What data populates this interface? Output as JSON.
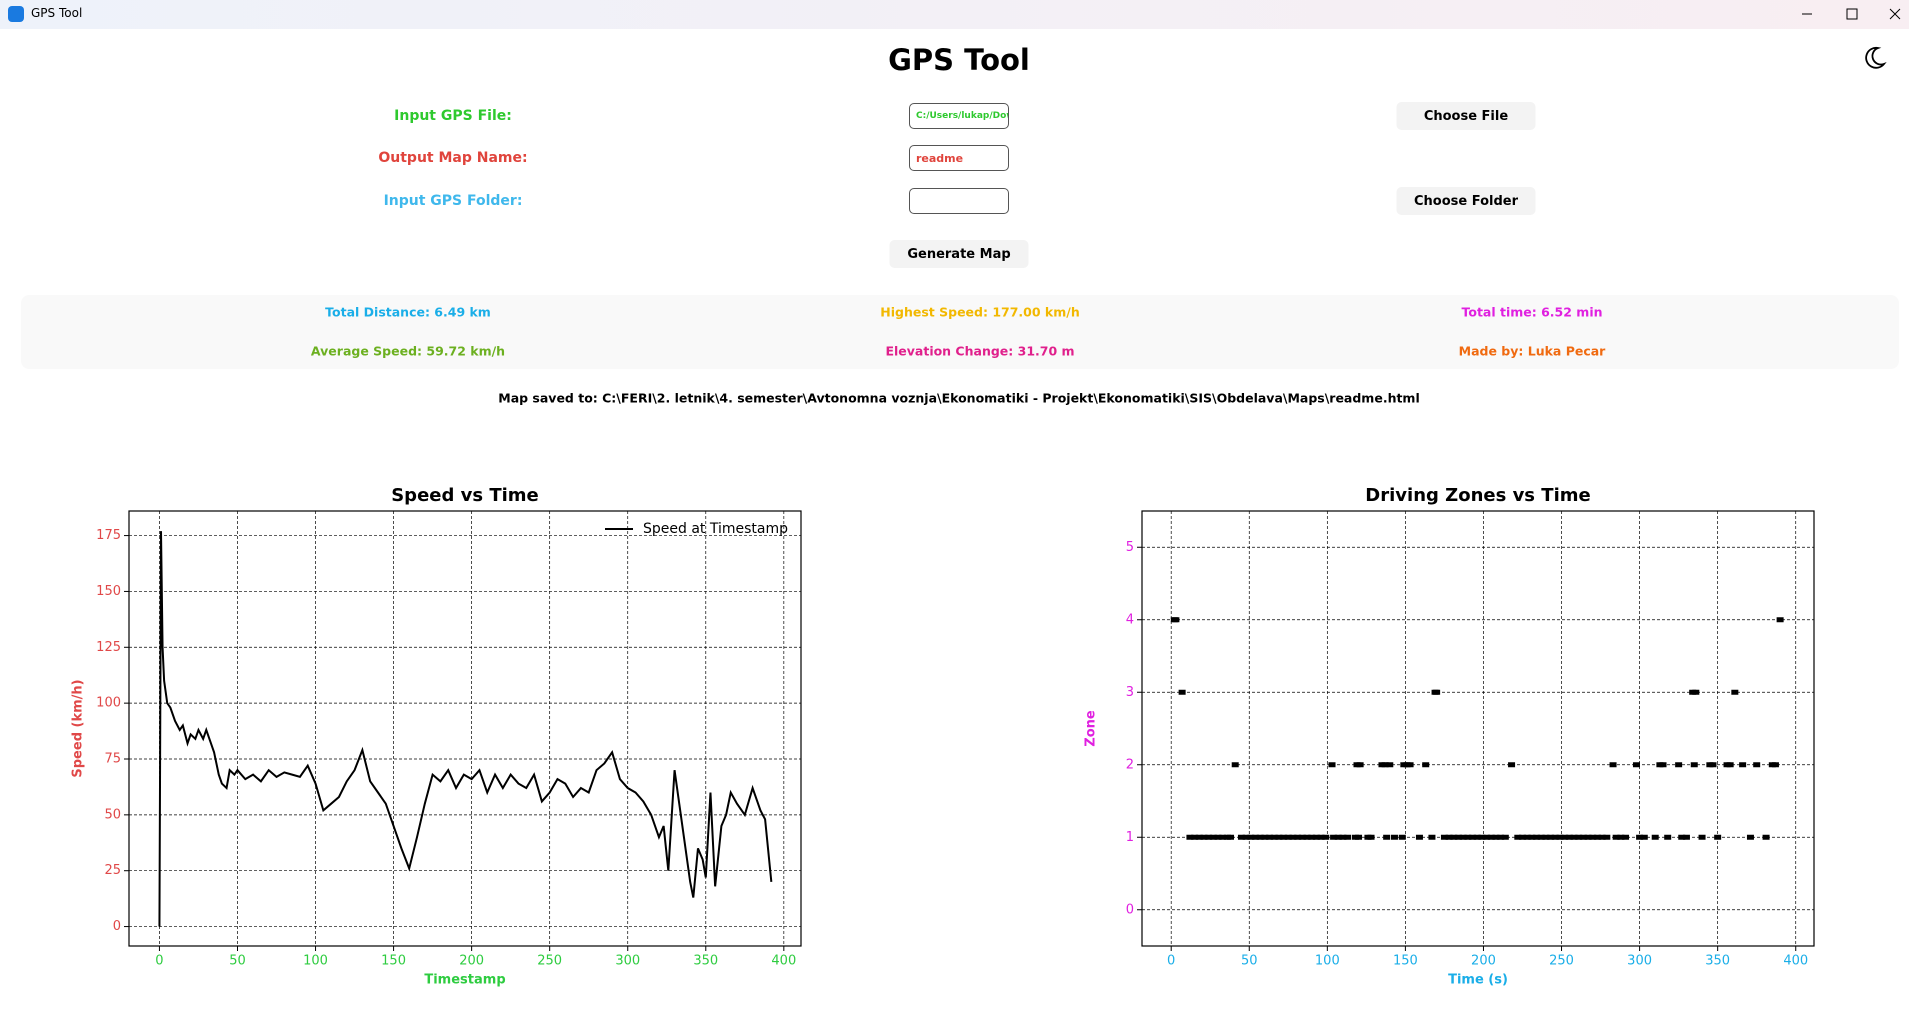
{
  "window": {
    "title": "GPS Tool"
  },
  "header": {
    "title": "GPS Tool"
  },
  "form": {
    "input_file_label": "Input GPS File:",
    "input_file_value": "C:/Users/lukap/Dow",
    "output_name_label": "Output Map Name:",
    "output_name_value": "readme",
    "input_folder_label": "Input GPS Folder:",
    "choose_file": "Choose File",
    "choose_folder": "Choose Folder",
    "generate": "Generate Map"
  },
  "stats": [
    "Total Distance: 6.49 km",
    "Highest Speed: 177.00 km/h",
    "Total time: 6.52 min",
    "Average Speed: 59.72 km/h",
    "Elevation Change: 31.70 m",
    "Made by: Luka Pecar"
  ],
  "status": "Map saved to: C:\\FERI\\2. letnik\\4. semester\\Avtonomna voznja\\Ekonomatiki - Projekt\\Ekonomatiki\\SIS\\Obdelava\\Maps\\readme.html",
  "chart_data": [
    {
      "type": "line",
      "title": "Speed vs Time",
      "xlabel": "Timestamp",
      "ylabel": "Speed (km/h)",
      "x": [
        0,
        1,
        2,
        3,
        5,
        7,
        10,
        13,
        15,
        18,
        20,
        23,
        25,
        28,
        30,
        33,
        35,
        38,
        40,
        43,
        45,
        48,
        50,
        55,
        60,
        65,
        70,
        75,
        80,
        85,
        90,
        95,
        100,
        105,
        110,
        115,
        120,
        125,
        130,
        135,
        140,
        145,
        150,
        155,
        160,
        165,
        170,
        175,
        180,
        185,
        190,
        195,
        200,
        205,
        210,
        215,
        220,
        225,
        230,
        235,
        240,
        245,
        250,
        255,
        260,
        265,
        270,
        275,
        280,
        285,
        290,
        295,
        300,
        305,
        310,
        315,
        320,
        323,
        326,
        330,
        333,
        336,
        340,
        342,
        345,
        348,
        350,
        353,
        356,
        360,
        363,
        366,
        370,
        375,
        380,
        385,
        388,
        392
      ],
      "series": [
        {
          "name": "Speed at Timestamp",
          "color": "#000000",
          "values": [
            0,
            177,
            125,
            110,
            100,
            98,
            92,
            88,
            90,
            82,
            86,
            84,
            88,
            84,
            88,
            82,
            78,
            68,
            64,
            62,
            70,
            68,
            70,
            66,
            68,
            65,
            70,
            67,
            69,
            68,
            67,
            72,
            64,
            52,
            55,
            58,
            65,
            70,
            79,
            65,
            60,
            55,
            45,
            35,
            26,
            40,
            55,
            68,
            65,
            70,
            62,
            68,
            66,
            70,
            60,
            68,
            62,
            68,
            64,
            62,
            68,
            56,
            60,
            66,
            64,
            58,
            62,
            60,
            70,
            73,
            78,
            66,
            62,
            60,
            56,
            50,
            40,
            45,
            25,
            70,
            55,
            40,
            20,
            13,
            35,
            30,
            22,
            60,
            18,
            45,
            50,
            60,
            55,
            50,
            62,
            52,
            48,
            20
          ]
        }
      ],
      "xlim": [
        -19.5,
        411
      ],
      "ylim": [
        -8.7,
        186
      ],
      "xticks": [
        0,
        50,
        100,
        150,
        200,
        250,
        300,
        350,
        400
      ],
      "yticks": [
        0,
        25,
        50,
        75,
        100,
        125,
        150,
        175
      ],
      "grid": true,
      "legend": "upper right"
    },
    {
      "type": "scatter",
      "title": "Driving Zones vs Time",
      "xlabel": "Time (s)",
      "ylabel": "Zone",
      "color": "#000000",
      "x": [
        12,
        15,
        18,
        21,
        24,
        27,
        30,
        33,
        36,
        38,
        45,
        48,
        51,
        54,
        57,
        60,
        63,
        66,
        69,
        72,
        75,
        78,
        81,
        84,
        87,
        90,
        93,
        96,
        99,
        104,
        107,
        110,
        113,
        118,
        120,
        126,
        128,
        138,
        143,
        148,
        159,
        167,
        175,
        178,
        181,
        184,
        187,
        190,
        193,
        196,
        199,
        202,
        205,
        208,
        211,
        214,
        222,
        225,
        228,
        231,
        234,
        237,
        240,
        243,
        246,
        249,
        252,
        255,
        258,
        261,
        264,
        267,
        270,
        273,
        276,
        279,
        285,
        288,
        291,
        300,
        303,
        310,
        318,
        327,
        330,
        340,
        350,
        371,
        381,
        41,
        103,
        119,
        121,
        135,
        137,
        140,
        149,
        151,
        153,
        163,
        218,
        283,
        298,
        313,
        315,
        325,
        335,
        345,
        347,
        356,
        358,
        366,
        375,
        385,
        387,
        7,
        169,
        170,
        334,
        336,
        361,
        2,
        3,
        390
      ],
      "values": [
        1,
        1,
        1,
        1,
        1,
        1,
        1,
        1,
        1,
        1,
        1,
        1,
        1,
        1,
        1,
        1,
        1,
        1,
        1,
        1,
        1,
        1,
        1,
        1,
        1,
        1,
        1,
        1,
        1,
        1,
        1,
        1,
        1,
        1,
        1,
        1,
        1,
        1,
        1,
        1,
        1,
        1,
        1,
        1,
        1,
        1,
        1,
        1,
        1,
        1,
        1,
        1,
        1,
        1,
        1,
        1,
        1,
        1,
        1,
        1,
        1,
        1,
        1,
        1,
        1,
        1,
        1,
        1,
        1,
        1,
        1,
        1,
        1,
        1,
        1,
        1,
        1,
        1,
        1,
        1,
        1,
        1,
        1,
        1,
        1,
        1,
        1,
        1,
        1,
        2,
        2,
        2,
        2,
        2,
        2,
        2,
        2,
        2,
        2,
        2,
        2,
        2,
        2,
        2,
        2,
        2,
        2,
        2,
        2,
        2,
        2,
        2,
        2,
        2,
        2,
        3,
        3,
        3,
        3,
        3,
        3,
        4,
        4,
        4
      ],
      "xlim": [
        -18.7,
        411.7
      ],
      "ylim": [
        -0.5,
        5.5
      ],
      "xticks": [
        0,
        50,
        100,
        150,
        200,
        250,
        300,
        350,
        400
      ],
      "yticks": [
        0,
        1,
        2,
        3,
        4,
        5
      ],
      "grid": true
    }
  ]
}
